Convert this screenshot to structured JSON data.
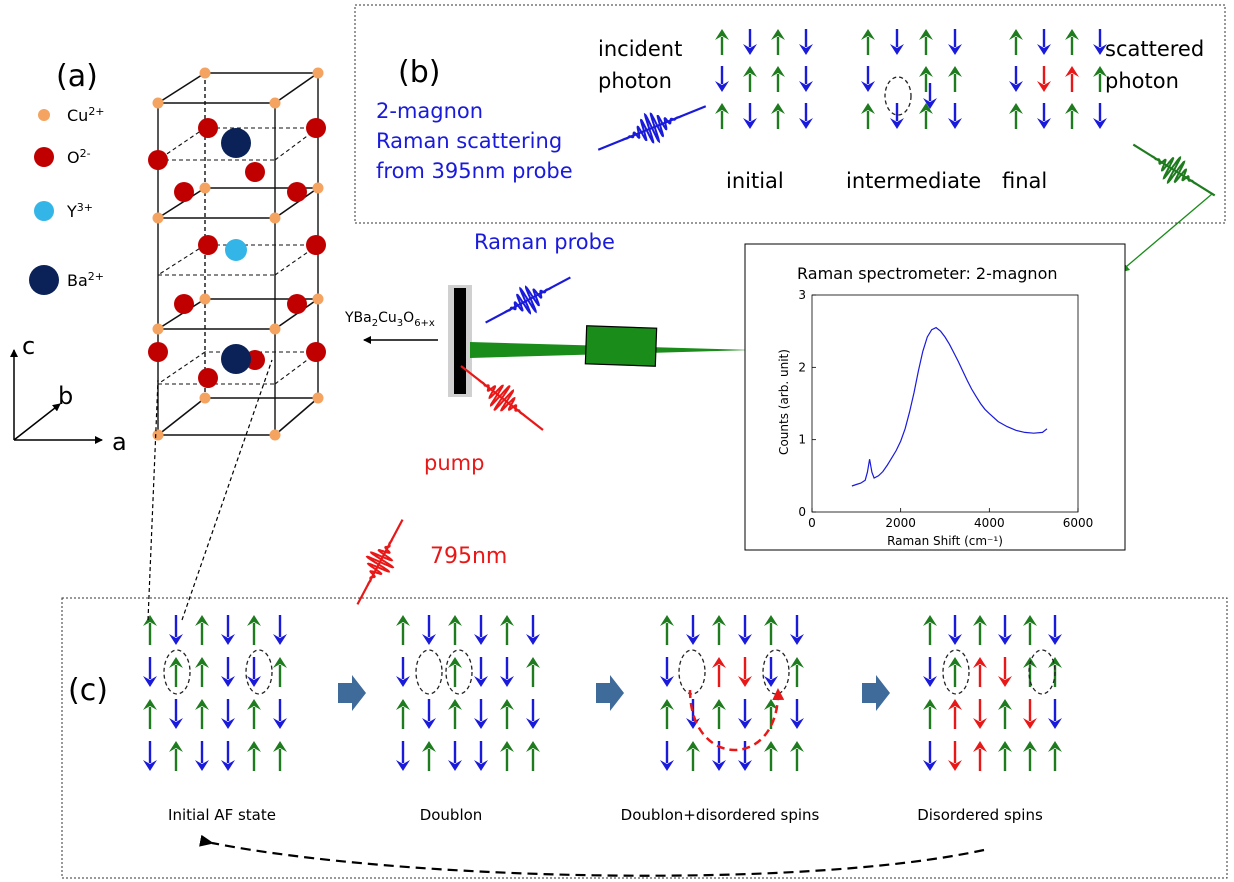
{
  "panel_a": {
    "label": "(a)",
    "legend": [
      {
        "ion": "Cu",
        "charge": "2+",
        "color": "#f4a460"
      },
      {
        "ion": "O",
        "charge": "2-",
        "color": "#c00000"
      },
      {
        "ion": "Y",
        "charge": "3+",
        "color": "#33b5e8"
      },
      {
        "ion": "Ba",
        "charge": "2+",
        "color": "#0a2258"
      }
    ],
    "axes": {
      "c": "c",
      "b": "b",
      "a": "a"
    },
    "sample_name": "YBa2Cu3O6+x",
    "sample_parts": [
      {
        "t": "YBa",
        "sub": false
      },
      {
        "t": "2",
        "sub": true
      },
      {
        "t": "Cu",
        "sub": false
      },
      {
        "t": "3",
        "sub": true
      },
      {
        "t": "O",
        "sub": false
      },
      {
        "t": "6+x",
        "sub": true
      }
    ]
  },
  "panel_b": {
    "label": "(b)",
    "title_lines": [
      "2-magnon",
      "Raman scattering",
      "from 395nm probe"
    ],
    "incident_lines": [
      "incident",
      "photon"
    ],
    "scattered_lines": [
      "scattered",
      "photon"
    ],
    "stages": [
      "initial",
      "intermediate",
      "final"
    ]
  },
  "middle": {
    "raman_probe": "Raman probe",
    "pump": "pump",
    "pump_wavelength": "795nm"
  },
  "chart_data": {
    "type": "line",
    "title": "Raman spectrometer: 2-magnon",
    "xlabel": "Raman Shift (cm⁻¹)",
    "ylabel": "Counts (arb. unit)",
    "xlim": [
      0,
      6000
    ],
    "ylim": [
      0,
      3
    ],
    "xticks": [
      0,
      2000,
      4000,
      6000
    ],
    "yticks": [
      0,
      1,
      2,
      3
    ],
    "series": [
      {
        "color": "#1a1adb",
        "x": [
          900,
          1000,
          1100,
          1200,
          1250,
          1300,
          1350,
          1400,
          1500,
          1600,
          1700,
          1800,
          1900,
          2000,
          2100,
          2200,
          2300,
          2400,
          2500,
          2600,
          2700,
          2800,
          2900,
          3000,
          3100,
          3200,
          3300,
          3400,
          3500,
          3600,
          3700,
          3800,
          3900,
          4000,
          4200,
          4400,
          4600,
          4800,
          5000,
          5200,
          5300
        ],
        "y": [
          0.36,
          0.38,
          0.4,
          0.44,
          0.55,
          0.73,
          0.55,
          0.47,
          0.5,
          0.56,
          0.65,
          0.75,
          0.85,
          0.98,
          1.15,
          1.38,
          1.65,
          1.95,
          2.22,
          2.42,
          2.52,
          2.55,
          2.5,
          2.42,
          2.32,
          2.2,
          2.08,
          1.95,
          1.82,
          1.7,
          1.6,
          1.5,
          1.42,
          1.36,
          1.25,
          1.18,
          1.13,
          1.1,
          1.09,
          1.1,
          1.15
        ]
      }
    ]
  },
  "panel_c": {
    "label": "(c)",
    "stages": [
      "Initial AF state",
      "Doublon",
      "Doublon+disordered spins",
      "Disordered spins"
    ]
  },
  "colors": {
    "green": "#1e7b1e",
    "blue": "#1a1adb",
    "red": "#e81818",
    "flow_arrow": "#3f6b9b",
    "beam": "#1a8c1a"
  }
}
